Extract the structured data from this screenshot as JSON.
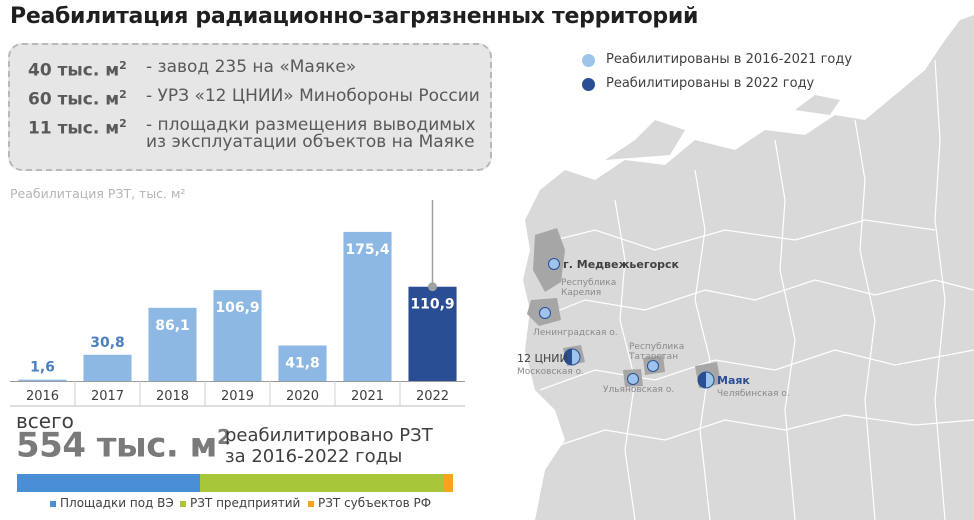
{
  "title": "Реабилитация радиационно-загрязненных территорий",
  "callout": {
    "items": [
      {
        "value": "40 тыс. м",
        "sup": "2",
        "text": "- завод 235 на «Маяке»"
      },
      {
        "value": "60 тыс. м",
        "sup": "2",
        "text": "- УРЗ «12 ЦНИИ» Минобороны России"
      },
      {
        "value": "11 тыс. м",
        "sup": "2",
        "text": "- площадки размещения выводимых из эксплуатации объектов на Маяке"
      }
    ]
  },
  "chart_data": {
    "type": "bar",
    "title": "Реабилитация РЗТ, тыс. м²",
    "categories": [
      "2016",
      "2017",
      "2018",
      "2019",
      "2020",
      "2021",
      "2022"
    ],
    "values": [
      1.6,
      30.8,
      86.1,
      106.9,
      41.8,
      175.4,
      110.9
    ],
    "value_labels": [
      "1,6",
      "30,8",
      "86,1",
      "106,9",
      "41,8",
      "175,4",
      "110,9"
    ],
    "colors": [
      "#8db8e3",
      "#8db8e3",
      "#8db8e3",
      "#8db8e3",
      "#8db8e3",
      "#8db8e3",
      "#2a4e94"
    ],
    "highlight_index": 6,
    "ylim": [
      0,
      200
    ],
    "grid": false
  },
  "summary": {
    "label": "всего",
    "value": "554 тыс. м",
    "sup": "2",
    "desc_line1": "реабилитировано РЗТ",
    "desc_line2": "за 2016-2022 годы"
  },
  "stack_bar": {
    "segments": [
      {
        "name": "Площадки под ВЭ",
        "color": "#4a8fd6",
        "share": 0.42
      },
      {
        "name": "РЗТ предприятий",
        "color": "#a8c63a",
        "share": 0.56
      },
      {
        "name": "РЗТ субъектов РФ",
        "color": "#f4a51c",
        "share": 0.02
      }
    ]
  },
  "map": {
    "legend": [
      {
        "label": "Реабилитированы в 2016-2021 году",
        "color": "#9ec4ec"
      },
      {
        "label": "Реабилитированы в 2022 году",
        "color": "#2a4e94"
      }
    ],
    "places": [
      {
        "label": "г. Медвежьегорск",
        "sub": "Республика\nКарелия",
        "type": "old"
      },
      {
        "label": "",
        "sub": "Ленинградская о.",
        "type": "old"
      },
      {
        "label": "12 ЦНИИ",
        "sub": "Московская о.",
        "type": "half"
      },
      {
        "label": "",
        "sub": "Республика\nТатарстан",
        "type": "old"
      },
      {
        "label": "",
        "sub": "Ульяновская о.",
        "type": "old"
      },
      {
        "label": "Маяк",
        "sub": "Челябинская о.",
        "type": "half"
      }
    ]
  }
}
